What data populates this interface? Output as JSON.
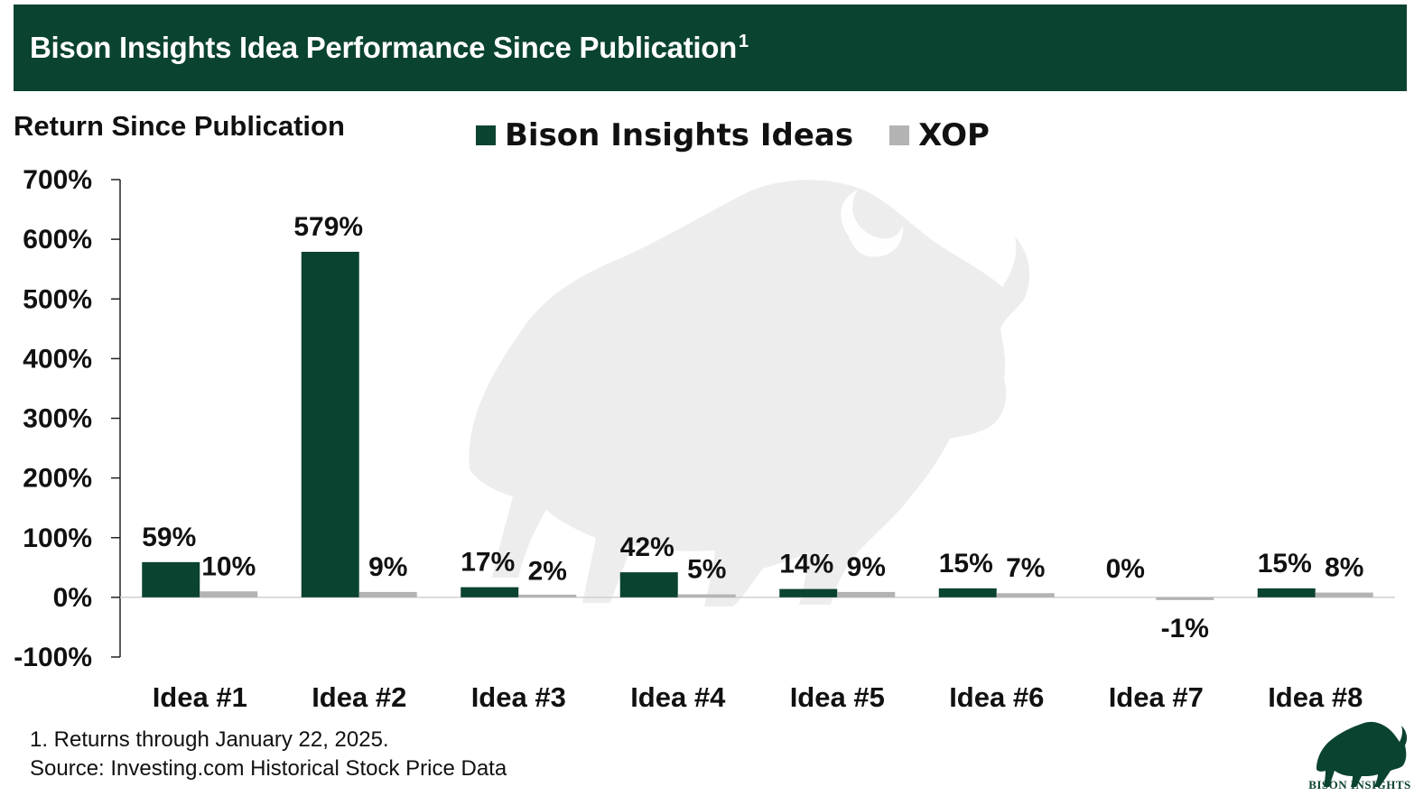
{
  "header": {
    "title": "Bison Insights Idea Performance Since Publication",
    "title_superscript": "1"
  },
  "colors": {
    "brand_green": "#0b4331",
    "xop_gray": "#b3b3b3",
    "watermark": "#ededed"
  },
  "chart_data": {
    "type": "bar",
    "ylabel": "Return Since Publication",
    "categories": [
      "Idea #1",
      "Idea #2",
      "Idea #3",
      "Idea #4",
      "Idea #5",
      "Idea #6",
      "Idea #7",
      "Idea #8"
    ],
    "series": [
      {
        "name": "Bison Insights Ideas",
        "color": "#0b4331",
        "values": [
          59,
          579,
          17,
          42,
          14,
          15,
          0,
          15
        ],
        "labels": [
          "59%",
          "579%",
          "17%",
          "42%",
          "14%",
          "15%",
          "0%",
          "15%"
        ]
      },
      {
        "name": "XOP",
        "color": "#b3b3b3",
        "values": [
          10,
          9,
          2,
          5,
          9,
          7,
          -1,
          8
        ],
        "labels": [
          "10%",
          "9%",
          "2%",
          "5%",
          "9%",
          "7%",
          "-1%",
          "8%"
        ]
      }
    ],
    "ylim": [
      -100,
      700
    ],
    "yticks": [
      -100,
      0,
      100,
      200,
      300,
      400,
      500,
      600,
      700
    ],
    "ytick_labels": [
      "-100%",
      "0%",
      "100%",
      "200%",
      "300%",
      "400%",
      "500%",
      "600%",
      "700%"
    ],
    "legend_position": "top-center",
    "grid": false
  },
  "footnotes": [
    "1. Returns through January 22, 2025.",
    "Source: Investing.com Historical Stock Price Data"
  ],
  "logo": {
    "icon": "bison-icon",
    "text": "BISON INSIGHTS"
  }
}
